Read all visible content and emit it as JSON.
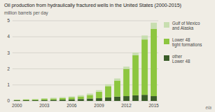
{
  "chart_data": {
    "type": "bar",
    "stacked": true,
    "title": "Oil production from hydraulically fractured wells in the United States (2000-2015)",
    "subtitle": "million barrels per day",
    "categories": [
      "2000",
      null,
      null,
      "2003",
      null,
      null,
      "2006",
      null,
      null,
      "2009",
      null,
      null,
      "2012",
      null,
      null,
      "2015"
    ],
    "series": [
      {
        "name": "other\nLower 48",
        "color": "#3a5c28",
        "values": [
          0.04,
          0.05,
          0.05,
          0.06,
          0.07,
          0.08,
          0.1,
          0.12,
          0.15,
          0.17,
          0.22,
          0.27,
          0.3,
          0.35,
          0.38,
          0.3
        ]
      },
      {
        "name": "Lower 48\ntight formations",
        "color": "#8dc63f",
        "values": [
          0.03,
          0.04,
          0.05,
          0.07,
          0.08,
          0.1,
          0.12,
          0.16,
          0.22,
          0.4,
          0.7,
          1.0,
          1.7,
          2.5,
          3.45,
          4.2
        ]
      },
      {
        "name": "Gulf of Mexico\nand Alaska",
        "color": "#c8deb0",
        "values": [
          0.02,
          0.02,
          0.03,
          0.04,
          0.05,
          0.06,
          0.07,
          0.08,
          0.09,
          0.1,
          0.12,
          0.13,
          0.14,
          0.17,
          0.25,
          0.38
        ]
      }
    ],
    "ylim": [
      0,
      5
    ],
    "yticks": [
      0,
      1,
      2,
      3,
      4,
      5
    ],
    "grid": true,
    "legend": "upper right",
    "annotations": [
      "eia"
    ]
  }
}
